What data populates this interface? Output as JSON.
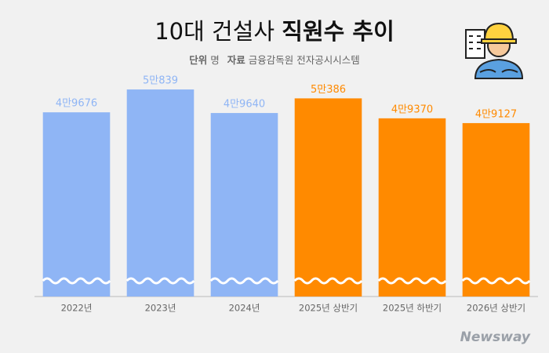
{
  "chart_data": {
    "type": "bar",
    "title": "10대 건설사",
    "title_emphasis": "직원수 추이",
    "unit_label": "단위",
    "unit": "명",
    "source_label": "자료",
    "source": "금융감독원 전자공시시스템",
    "brand": "Newsway",
    "categories": [
      "2022년",
      "2023년",
      "2024년",
      "2025년 상반기",
      "2025년 하반기",
      "2026년 상반기"
    ],
    "values": [
      49676,
      50839,
      49640,
      50386,
      49370,
      49127
    ],
    "value_labels": [
      "4만9676",
      "5만839",
      "4만9640",
      "5만386",
      "4만9370",
      "4만9127"
    ],
    "colors": [
      "#8fb5f5",
      "#8fb5f5",
      "#8fb5f5",
      "#ff8a00",
      "#ff8a00",
      "#ff8a00"
    ],
    "ylim": [
      40300,
      51400
    ]
  }
}
